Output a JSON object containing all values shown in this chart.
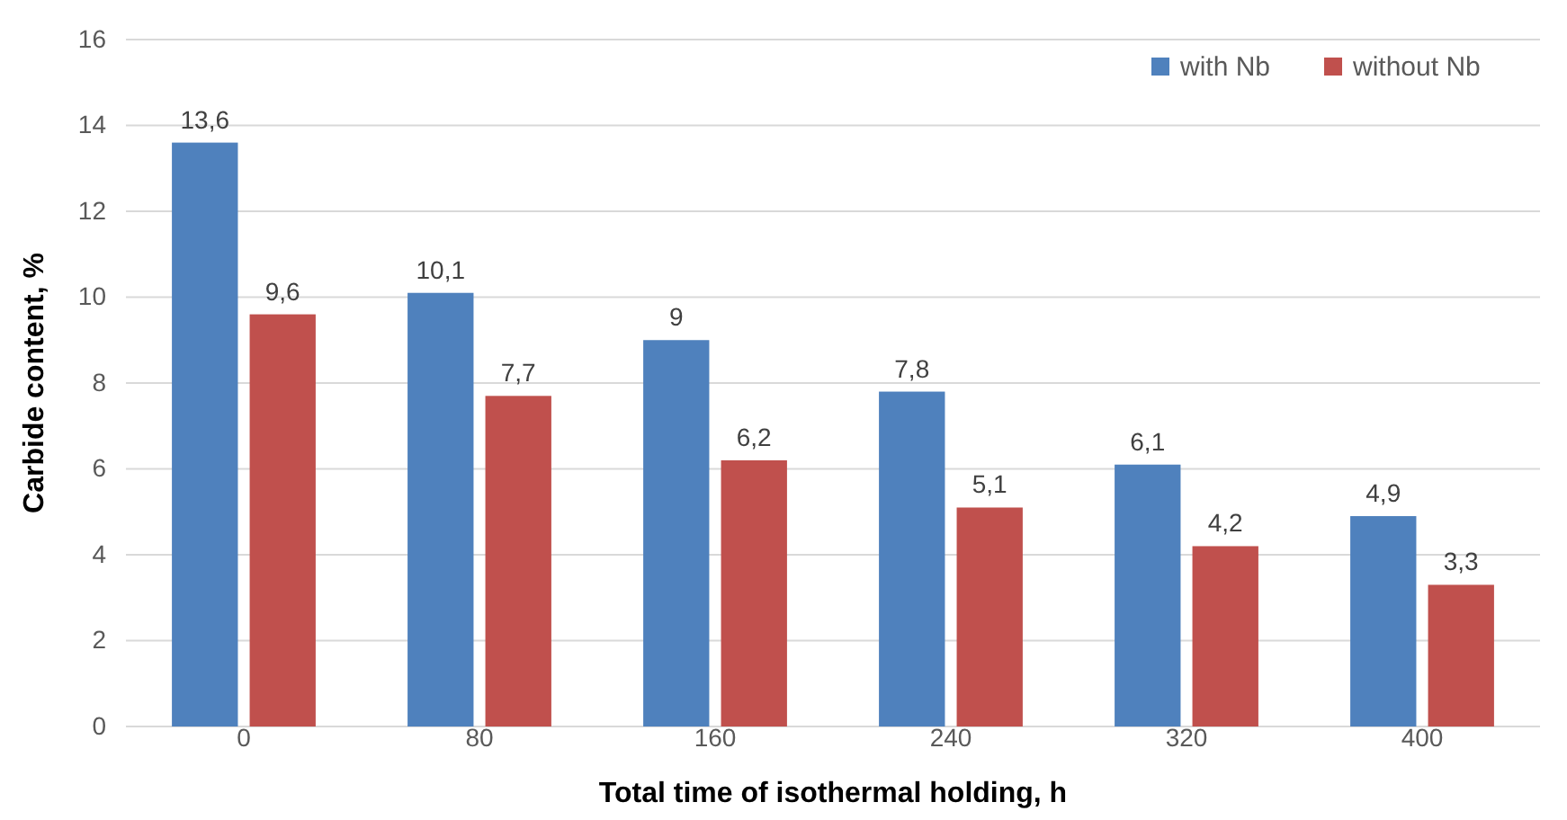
{
  "chart_data": {
    "type": "bar",
    "xlabel": "Total time of isothermal holding, h",
    "ylabel": "Carbide content, %",
    "categories": [
      "0",
      "80",
      "160",
      "240",
      "320",
      "400"
    ],
    "series": [
      {
        "name": "with Nb",
        "color": "#4f81bd",
        "values": [
          13.6,
          10.1,
          9,
          7.8,
          6.1,
          4.9
        ],
        "value_labels": [
          "13,6",
          "10,1",
          "9",
          "7,8",
          "6,1",
          "4,9"
        ]
      },
      {
        "name": "without Nb",
        "color": "#c0504d",
        "values": [
          9.6,
          7.7,
          6.2,
          5.1,
          4.2,
          3.3
        ],
        "value_labels": [
          "9,6",
          "7,7",
          "6,2",
          "5,1",
          "4,2",
          "3,3"
        ]
      }
    ],
    "ylim": [
      0,
      16
    ],
    "yticks": [
      0,
      2,
      4,
      6,
      8,
      10,
      12,
      14,
      16
    ],
    "grid": "y",
    "legend": "top right"
  }
}
